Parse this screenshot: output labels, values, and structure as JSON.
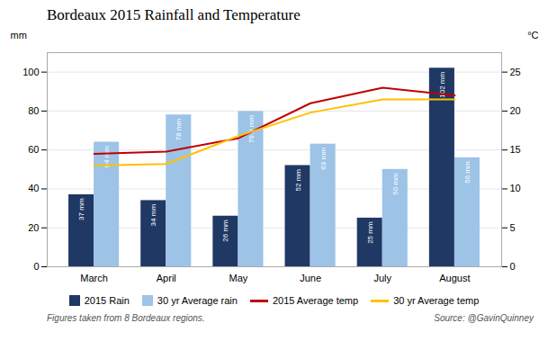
{
  "chart_data": {
    "type": "bar",
    "title": "Bordeaux 2015 Rainfall and Temperature",
    "categories": [
      "March",
      "April",
      "May",
      "June",
      "July",
      "August"
    ],
    "ylabel": "mm",
    "y2label": "°C",
    "ylim": [
      0,
      110
    ],
    "yticks": [
      0,
      20,
      40,
      60,
      80,
      100
    ],
    "y2lim": [
      0,
      27.5
    ],
    "y2ticks": [
      0,
      5,
      10,
      15,
      20,
      25
    ],
    "grid": true,
    "data_labels": true,
    "legend": "bottom",
    "series": [
      {
        "name": "2015 Rain",
        "type": "bar",
        "color": "#1f3864",
        "values": [
          37,
          34,
          26,
          52,
          25,
          102
        ],
        "value_labels": [
          "37 mm",
          "34 mm",
          "26 mm",
          "52 mm",
          "25 mm",
          "102 mm"
        ]
      },
      {
        "name": "30 yr Average rain",
        "type": "bar",
        "color": "#9dc3e6",
        "values": [
          64,
          78,
          79.8,
          63,
          50,
          56
        ],
        "value_labels": [
          "64 mm",
          "78 mm",
          "79.8 mm",
          "63 mm",
          "50 mm",
          "56 mm"
        ]
      },
      {
        "name": "2015 Average temp",
        "type": "line",
        "axis": "y2",
        "color": "#c00000",
        "values": [
          14.5,
          14.8,
          16.5,
          21.0,
          23.0,
          22.0
        ]
      },
      {
        "name": "30 yr Average temp",
        "type": "line",
        "axis": "y2",
        "color": "#ffc000",
        "values": [
          13.0,
          13.2,
          16.8,
          19.8,
          21.5,
          21.5
        ]
      }
    ],
    "annotations": [
      "Figures taken from 8 Bordeaux regions.",
      "Source: @GavinQuinney"
    ]
  }
}
